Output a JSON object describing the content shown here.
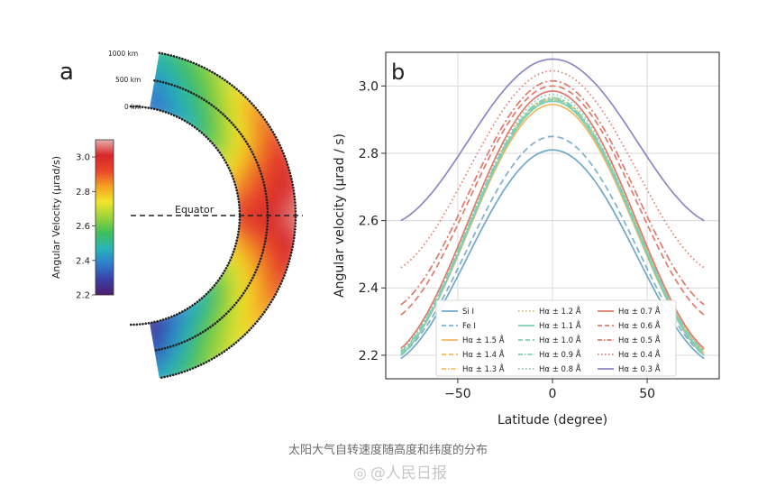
{
  "caption": "太阳大气自转速度随高度和纬度的分布",
  "watermark": "@人民日报",
  "chart_data": [
    {
      "type": "heatmap",
      "panel_label": "a",
      "shape": "solar-limb-half-annulus",
      "colorbar": {
        "label": "Angular Velocity (μrad/s)",
        "range": [
          2.2,
          3.1
        ],
        "ticks": [
          2.2,
          2.4,
          2.6,
          2.8,
          3.0
        ],
        "colormap": [
          "#4b1f6b",
          "#3a3fa8",
          "#2f7ecb",
          "#28b4b8",
          "#3fbf59",
          "#9cd33a",
          "#f2e52a",
          "#f5a023",
          "#e8462c",
          "#d62828",
          "#e8b0b0"
        ]
      },
      "height_labels": [
        "1000 km",
        "500 km",
        "0 km"
      ],
      "equator_label": "Equator",
      "radial_levels_km": [
        0,
        500,
        1000
      ],
      "latitudes_deg": [
        -80,
        -60,
        -40,
        -20,
        0,
        20,
        40,
        60,
        80
      ],
      "values": [
        [
          2.25,
          2.4,
          2.55,
          2.75,
          2.95,
          2.8,
          2.6,
          2.45,
          2.35
        ],
        [
          2.3,
          2.55,
          2.7,
          2.85,
          3.0,
          2.9,
          2.72,
          2.55,
          2.4
        ],
        [
          2.45,
          2.65,
          2.8,
          2.95,
          3.08,
          2.97,
          2.85,
          2.65,
          2.5
        ]
      ]
    },
    {
      "type": "line",
      "panel_label": "b",
      "xlabel": "Latitude (degree)",
      "ylabel": "Angular velocity (μrad / s)",
      "xlim": [
        -88,
        88
      ],
      "ylim": [
        2.13,
        3.1
      ],
      "xticks": [
        -50,
        0,
        50
      ],
      "yticks": [
        2.2,
        2.4,
        2.6,
        2.8,
        3.0
      ],
      "grid": true,
      "legend_position": "lower-center",
      "legend_columns": 3,
      "series": [
        {
          "name": "Si I",
          "color": "#6fa8c9",
          "dash": "solid",
          "peak": 2.81,
          "end": 2.19
        },
        {
          "name": "Fe I",
          "color": "#7fb0c9",
          "dash": "dashed",
          "peak": 2.85,
          "end": 2.2
        },
        {
          "name": "Hα ± 1.5 Å",
          "color": "#f0b860",
          "dash": "solid",
          "peak": 2.945,
          "end": 2.2
        },
        {
          "name": "Hα ± 1.4 Å",
          "color": "#f0b860",
          "dash": "dashed",
          "peak": 2.955,
          "end": 2.205
        },
        {
          "name": "Hα ± 1.3 Å",
          "color": "#f0c070",
          "dash": "dashdot",
          "peak": 2.96,
          "end": 2.21
        },
        {
          "name": "Hα ± 1.2 Å",
          "color": "#e8b050",
          "dash": "dotted",
          "peak": 2.965,
          "end": 2.215
        },
        {
          "name": "Hα ± 1.1 Å",
          "color": "#7ccfb8",
          "dash": "solid",
          "peak": 2.955,
          "end": 2.2
        },
        {
          "name": "Hα ± 1.0 Å",
          "color": "#7ccfb8",
          "dash": "dashed",
          "peak": 2.96,
          "end": 2.205
        },
        {
          "name": "Hα ± 0.9 Å",
          "color": "#7ccfb8",
          "dash": "dashdot",
          "peak": 2.965,
          "end": 2.21
        },
        {
          "name": "Hα ± 0.8 Å",
          "color": "#7ccfb8",
          "dash": "dotted",
          "peak": 2.975,
          "end": 2.215
        },
        {
          "name": "Hα ± 0.7 Å",
          "color": "#e07a6a",
          "dash": "solid",
          "peak": 2.985,
          "end": 2.22
        },
        {
          "name": "Hα ± 0.6 Å",
          "color": "#e07a6a",
          "dash": "dashed",
          "peak": 3.0,
          "end": 2.32
        },
        {
          "name": "Hα ± 0.5 Å",
          "color": "#e07a6a",
          "dash": "dashdot",
          "peak": 3.015,
          "end": 2.35
        },
        {
          "name": "Hα ± 0.4 Å",
          "color": "#e07a6a",
          "dash": "dotted",
          "peak": 3.045,
          "end": 2.46
        },
        {
          "name": "Hα ± 0.3 Å",
          "color": "#8c86c2",
          "dash": "solid",
          "peak": 3.08,
          "end": 2.6
        }
      ],
      "series_x_range": [
        -80,
        80
      ]
    }
  ]
}
